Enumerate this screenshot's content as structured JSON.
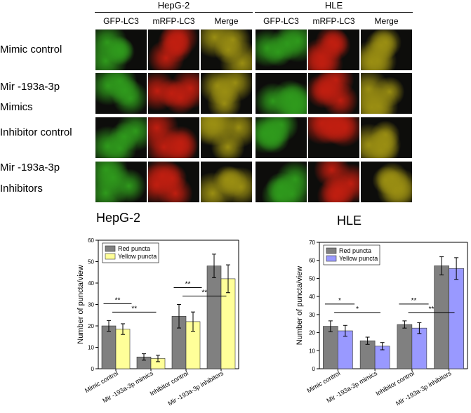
{
  "figure": {
    "groups": [
      "HepG-2",
      "HLE"
    ],
    "columns": [
      "GFP-LC3",
      "mRFP-LC3",
      "Merge",
      "GFP-LC3",
      "mRFP-LC3",
      "Merge"
    ],
    "rows": [
      [
        "Mimic control"
      ],
      [
        "Mir  -193a-3p",
        "Mimics"
      ],
      [
        "Inhibitor control"
      ],
      [
        "Mir  -193a-3p",
        "Inhibitors"
      ]
    ],
    "colors": {
      "green": "#2f9a1c",
      "red": "#c01e10",
      "merge": "#9a8e12",
      "bg": "#0d0d0b"
    }
  },
  "chart_data": [
    {
      "type": "bar",
      "title": "HepG-2",
      "ylabel": "Number of puncta/view",
      "xlabel": "",
      "categories": [
        "Mimic control",
        "Mir  -193a-3p mimics",
        "Inhibitor control",
        "Mir  -193a-3p inhibitors"
      ],
      "ylim": [
        0,
        60
      ],
      "yticks": [
        0,
        10,
        20,
        30,
        40,
        50,
        60
      ],
      "series": [
        {
          "name": "Red puncta",
          "color": "#808080",
          "values": [
            20,
            5.5,
            24.5,
            48
          ],
          "errors": [
            2.5,
            1.5,
            5.5,
            5.5
          ]
        },
        {
          "name": "Yellow puncta",
          "color": "#ffff99",
          "values": [
            18.5,
            4.8,
            22,
            42
          ],
          "errors": [
            2.5,
            1.5,
            4.5,
            6.5
          ]
        }
      ],
      "significance": [
        {
          "from": 0,
          "to": 1,
          "label": "**",
          "level": 1
        },
        {
          "from": 0,
          "to": 1,
          "label": "**",
          "level": 0
        },
        {
          "from": 2,
          "to": 3,
          "label": "**",
          "level": 1
        },
        {
          "from": 2,
          "to": 3,
          "label": "**",
          "level": 0
        }
      ],
      "legend": "top-left",
      "grid": false
    },
    {
      "type": "bar",
      "title": "HLE",
      "ylabel": "Number of puncta/view",
      "xlabel": "",
      "categories": [
        "Mimic control",
        "Mir  -193a-3p mimics",
        "Inhibitor control",
        "Mir  -193a-3p inhibitors"
      ],
      "ylim": [
        0,
        70
      ],
      "yticks": [
        0,
        10,
        20,
        30,
        40,
        50,
        60,
        70
      ],
      "series": [
        {
          "name": "Red puncta",
          "color": "#808080",
          "values": [
            23.5,
            15.5,
            24.5,
            57
          ],
          "errors": [
            3,
            2,
            2,
            5
          ]
        },
        {
          "name": "Yellow puncta",
          "color": "#9999ff",
          "values": [
            21,
            12.5,
            22.5,
            55.5
          ],
          "errors": [
            3,
            2,
            3,
            6
          ]
        }
      ],
      "significance": [
        {
          "from": 0,
          "to": 1,
          "label": "*",
          "level": 1
        },
        {
          "from": 0,
          "to": 1,
          "label": "*",
          "level": 0
        },
        {
          "from": 2,
          "to": 3,
          "label": "**",
          "level": 1
        },
        {
          "from": 2,
          "to": 3,
          "label": "**",
          "level": 0
        }
      ],
      "legend": "top-left",
      "grid": false
    }
  ]
}
